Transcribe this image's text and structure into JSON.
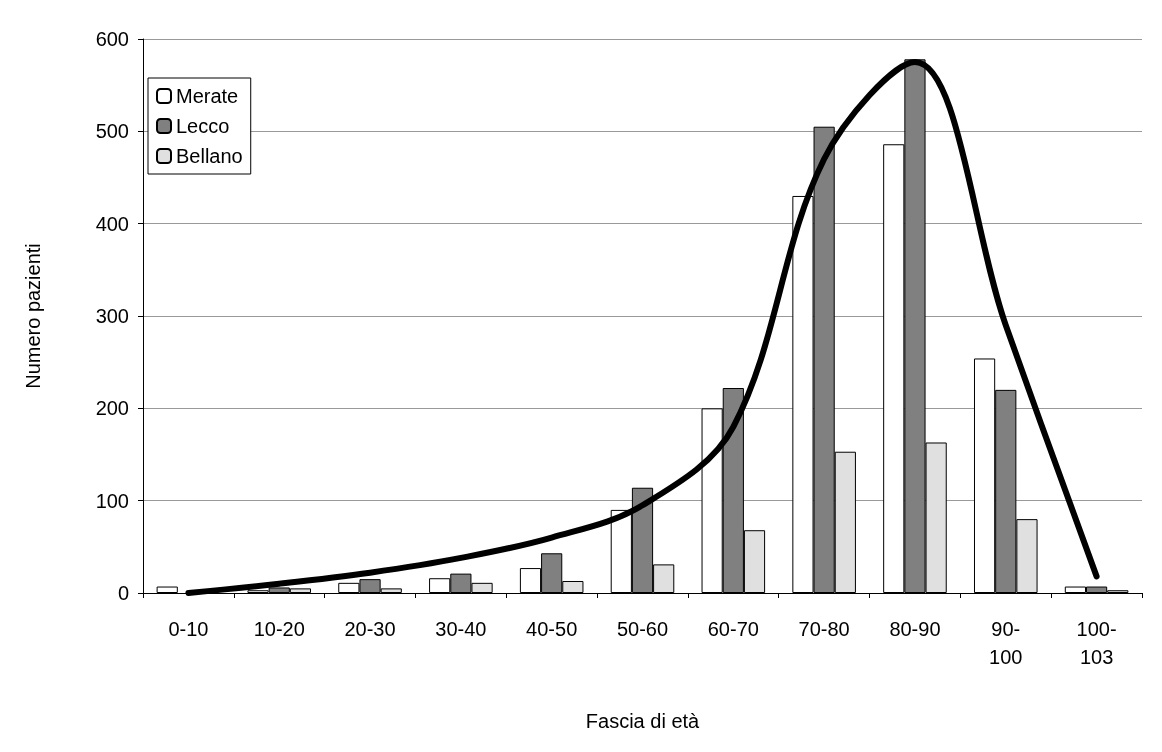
{
  "chart_data": {
    "type": "bar",
    "xlabel": "Fascia di età",
    "ylabel": "Numero pazienti",
    "categories": [
      "0-10",
      "10-20",
      "20-30",
      "30-40",
      "40-50",
      "50-60",
      "60-70",
      "70-80",
      "80-90",
      "90-100",
      "100-103"
    ],
    "series": [
      {
        "name": "Merate",
        "color": "#ffffff",
        "values": [
          7,
          3,
          11,
          16,
          27,
          90,
          200,
          430,
          486,
          254,
          7
        ]
      },
      {
        "name": "Lecco",
        "color": "#808080",
        "values": [
          null,
          6,
          15,
          21,
          43,
          114,
          222,
          505,
          578,
          220,
          7
        ]
      },
      {
        "name": "Bellano",
        "color": "#e0e0e0",
        "values": [
          null,
          5,
          5,
          11,
          13,
          31,
          68,
          153,
          163,
          80,
          3
        ]
      },
      {
        "type": "line",
        "color": "#000000",
        "values": [
          0,
          10,
          22,
          38,
          60,
          95,
          180,
          470,
          575,
          290,
          18
        ]
      }
    ],
    "ylim": [
      0,
      600
    ],
    "yticks": [
      0,
      100,
      200,
      300,
      400,
      500,
      600
    ],
    "grid": "y",
    "legend": "top left",
    "marker": "none",
    "line_style": "solid"
  }
}
